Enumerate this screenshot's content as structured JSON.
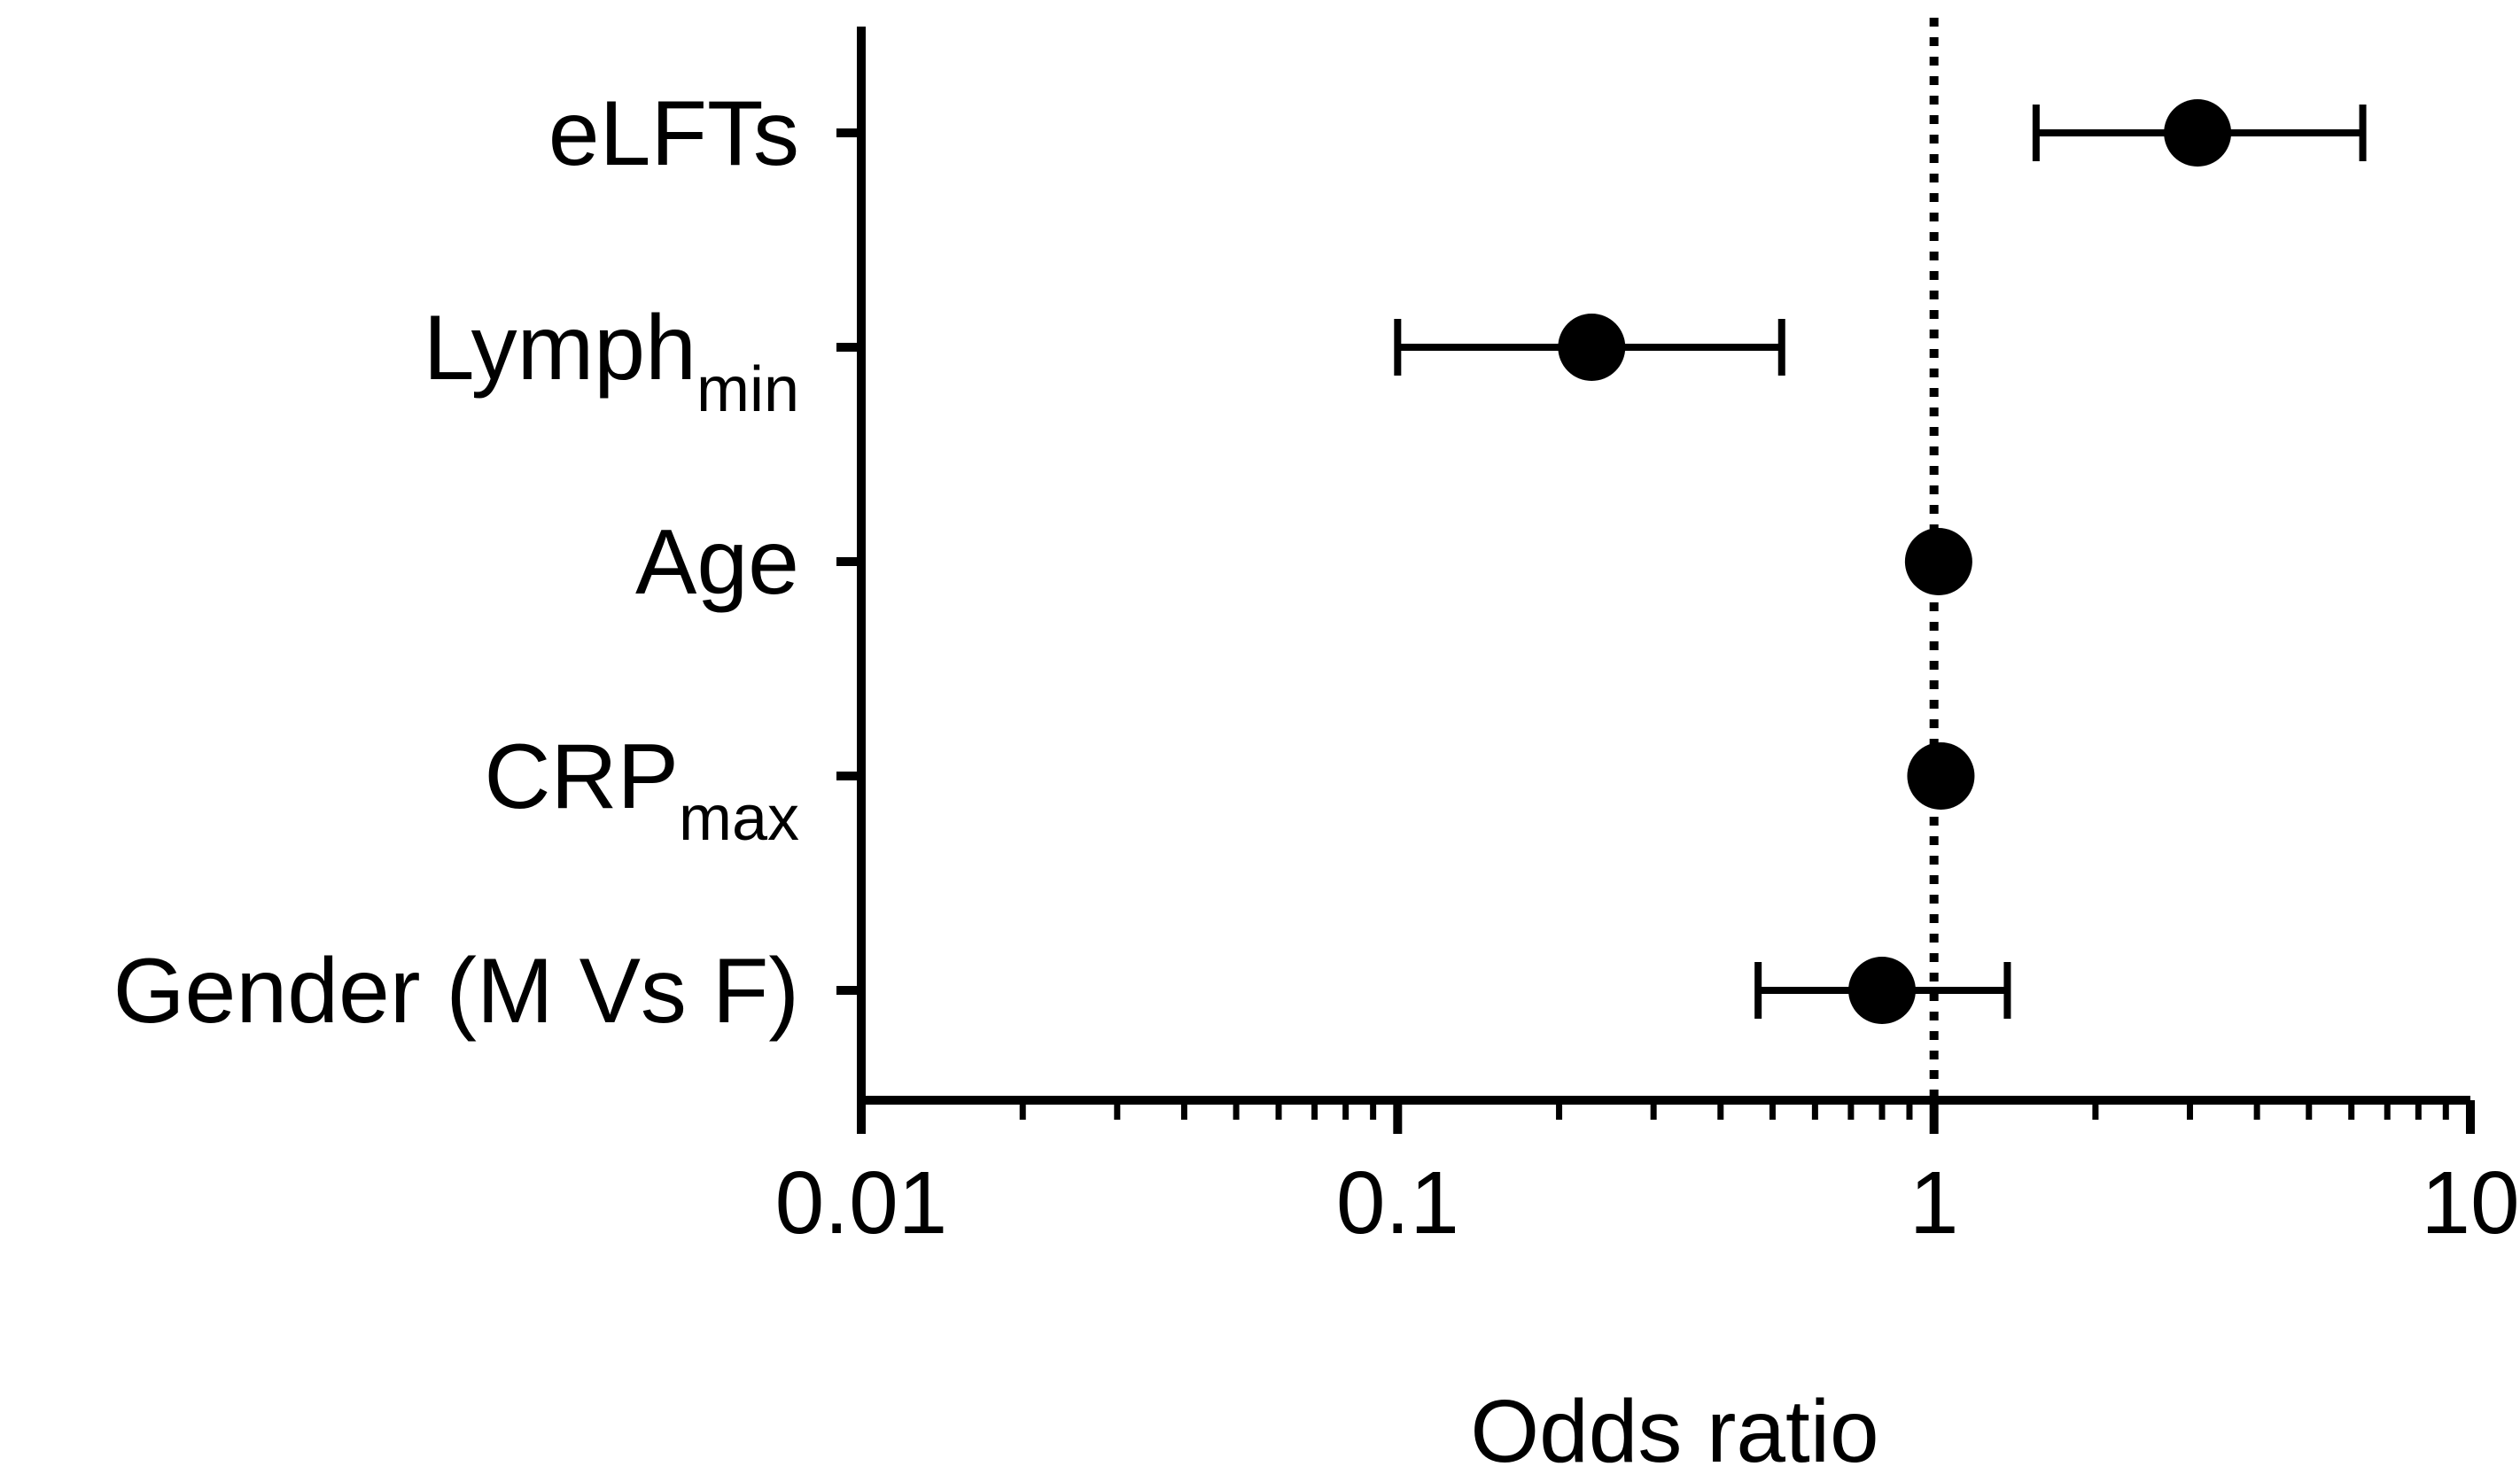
{
  "chart_data": {
    "type": "forest",
    "x_scale": "log",
    "xlim": [
      0.01,
      10
    ],
    "xticks": [
      0.01,
      0.1,
      1,
      10
    ],
    "xtick_labels": [
      "0.01",
      "0.1",
      "1",
      "10"
    ],
    "xlabel": "Odds ratio",
    "reference_line": 1,
    "categories": [
      {
        "label": "eLFTs",
        "subscript": ""
      },
      {
        "label": "Lymph",
        "subscript": "min"
      },
      {
        "label": "Age",
        "subscript": ""
      },
      {
        "label": "CRP",
        "subscript": "max"
      },
      {
        "label": "Gender (M Vs F)",
        "subscript": ""
      }
    ],
    "odds_ratio": [
      3.1,
      0.23,
      1.02,
      1.03,
      0.8
    ],
    "ci_lower": [
      1.55,
      0.1,
      1.0,
      1.0,
      0.47
    ],
    "ci_upper": [
      6.3,
      0.52,
      1.05,
      1.06,
      1.37
    ],
    "grid": false,
    "colors": {
      "ink": "#000000",
      "background": "#ffffff"
    }
  }
}
